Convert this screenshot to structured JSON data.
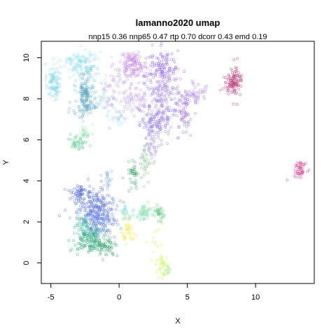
{
  "chart_data": {
    "type": "scatter",
    "title": "lamanno2020 umap",
    "subtitle": "nnp15 0.36 nnp65 0.47 rtp 0.70 dcorr 0.43 emd 0.19",
    "xlabel": "X",
    "ylabel": "Y",
    "xlim": [
      -5.7,
      14.3
    ],
    "ylim": [
      -1.0,
      10.8
    ],
    "xticks": [
      -5,
      0,
      5,
      10
    ],
    "yticks": [
      0,
      2,
      4,
      6,
      8,
      10
    ],
    "grid": false,
    "legend": "none",
    "clusters": [
      {
        "color": "#7ed6e8",
        "cx": -4.8,
        "cy": 8.8,
        "sx": 0.25,
        "sy": 0.45,
        "n": 90
      },
      {
        "color": "#8fdff0",
        "cx": -2.8,
        "cy": 9.8,
        "sx": 0.7,
        "sy": 0.3,
        "n": 120
      },
      {
        "color": "#6fc3d8",
        "cx": -2.3,
        "cy": 8.6,
        "sx": 0.4,
        "sy": 0.5,
        "n": 80
      },
      {
        "color": "#5aa8c4",
        "cx": -2.4,
        "cy": 7.6,
        "sx": 0.5,
        "sy": 0.3,
        "n": 70
      },
      {
        "color": "#5a9eb8",
        "cx": -2.5,
        "cy": 8.4,
        "sx": 0.2,
        "sy": 0.3,
        "n": 50
      },
      {
        "color": "#a9e2ee",
        "cx": -1.0,
        "cy": 7.8,
        "sx": 0.6,
        "sy": 0.6,
        "n": 40
      },
      {
        "color": "#a0e8f0",
        "cx": 0.0,
        "cy": 7.1,
        "sx": 0.3,
        "sy": 0.2,
        "n": 20
      },
      {
        "color": "#48c48a",
        "cx": -3.0,
        "cy": 5.9,
        "sx": 0.3,
        "sy": 0.2,
        "n": 40
      },
      {
        "color": "#7bd89a",
        "cx": -2.5,
        "cy": 6.3,
        "sx": 0.2,
        "sy": 0.2,
        "n": 20
      },
      {
        "color": "#c07ce0",
        "cx": 1.0,
        "cy": 9.7,
        "sx": 0.5,
        "sy": 0.3,
        "n": 110
      },
      {
        "color": "#b98ee0",
        "cx": 1.0,
        "cy": 8.3,
        "sx": 1.1,
        "sy": 0.7,
        "n": 160
      },
      {
        "color": "#8b5ce8",
        "cx": 3.2,
        "cy": 9.4,
        "sx": 0.6,
        "sy": 0.5,
        "n": 130
      },
      {
        "color": "#9b79e4",
        "cx": 3.3,
        "cy": 7.7,
        "sx": 0.6,
        "sy": 0.7,
        "n": 140
      },
      {
        "color": "#8a6fe0",
        "cx": 2.6,
        "cy": 6.8,
        "sx": 0.5,
        "sy": 0.4,
        "n": 90
      },
      {
        "color": "#9a88e0",
        "cx": 2.3,
        "cy": 5.8,
        "sx": 0.3,
        "sy": 0.4,
        "n": 40
      },
      {
        "color": "#a57ae0",
        "cx": 5.5,
        "cy": 8.2,
        "sx": 0.6,
        "sy": 0.25,
        "n": 60
      },
      {
        "color": "#8f66e0",
        "cx": 4.8,
        "cy": 7.3,
        "sx": 0.3,
        "sy": 0.6,
        "n": 50
      },
      {
        "color": "#b0306a",
        "cx": 8.5,
        "cy": 8.8,
        "sx": 0.25,
        "sy": 0.35,
        "n": 80
      },
      {
        "color": "#c23c80",
        "cx": 8.0,
        "cy": 8.7,
        "sx": 0.3,
        "sy": 0.2,
        "n": 30
      },
      {
        "color": "#d23c8e",
        "cx": 13.3,
        "cy": 4.6,
        "sx": 0.25,
        "sy": 0.2,
        "n": 50
      },
      {
        "color": "#3fa06a",
        "cx": 1.1,
        "cy": 4.4,
        "sx": 0.2,
        "sy": 0.3,
        "n": 40
      },
      {
        "color": "#74c07a",
        "cx": 1.9,
        "cy": 4.7,
        "sx": 0.2,
        "sy": 0.4,
        "n": 30
      },
      {
        "color": "#7aa8f0",
        "cx": -0.9,
        "cy": 4.1,
        "sx": 0.2,
        "sy": 0.3,
        "n": 20
      },
      {
        "color": "#3c52c8",
        "cx": -2.9,
        "cy": 3.4,
        "sx": 0.3,
        "sy": 0.2,
        "n": 40
      },
      {
        "color": "#5068d6",
        "cx": -1.8,
        "cy": 2.8,
        "sx": 0.8,
        "sy": 0.5,
        "n": 200
      },
      {
        "color": "#5d7ce0",
        "cx": -1.5,
        "cy": 1.9,
        "sx": 0.7,
        "sy": 0.4,
        "n": 140
      },
      {
        "color": "#3ec0a0",
        "cx": -2.8,
        "cy": 1.8,
        "sx": 0.3,
        "sy": 0.3,
        "n": 50
      },
      {
        "color": "#1fa070",
        "cx": -2.2,
        "cy": 1.0,
        "sx": 0.6,
        "sy": 0.25,
        "n": 90
      },
      {
        "color": "#2a9c6c",
        "cx": -1.0,
        "cy": 0.8,
        "sx": 0.4,
        "sy": 0.2,
        "n": 60
      },
      {
        "color": "#2fb08a",
        "cx": -2.0,
        "cy": 1.5,
        "sx": 0.4,
        "sy": 0.2,
        "n": 40
      },
      {
        "color": "#70d8a0",
        "cx": 1.8,
        "cy": 2.4,
        "sx": 0.6,
        "sy": 0.2,
        "n": 60
      },
      {
        "color": "#5dc07a",
        "cx": 3.0,
        "cy": 2.4,
        "sx": 0.2,
        "sy": 0.2,
        "n": 30
      },
      {
        "color": "#6fd4e8",
        "cx": 0.6,
        "cy": 2.5,
        "sx": 0.2,
        "sy": 0.15,
        "n": 15
      },
      {
        "color": "#f2e64a",
        "cx": 0.7,
        "cy": 1.5,
        "sx": 0.25,
        "sy": 0.3,
        "n": 40
      },
      {
        "color": "#c7f04a",
        "cx": 3.2,
        "cy": -0.1,
        "sx": 0.2,
        "sy": 0.3,
        "n": 35
      },
      {
        "color": "#d8f070",
        "cx": 2.6,
        "cy": 0.8,
        "sx": 0.3,
        "sy": 0.4,
        "n": 15
      },
      {
        "color": "#9ae870",
        "cx": 3.5,
        "cy": -0.4,
        "sx": 0.1,
        "sy": 0.15,
        "n": 10
      }
    ]
  }
}
